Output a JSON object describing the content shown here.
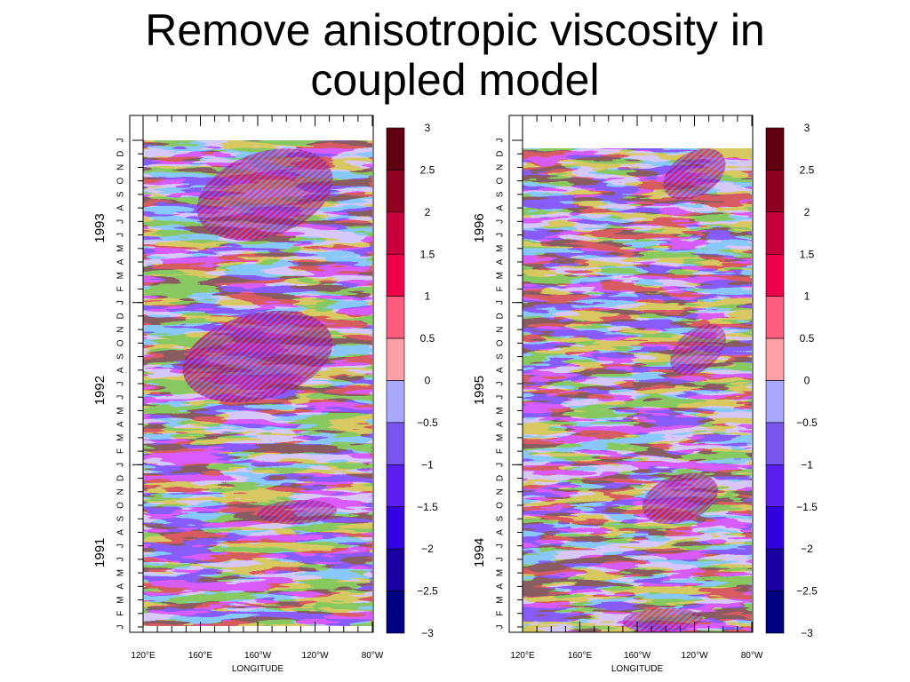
{
  "slide": {
    "title_line1": "Remove anisotropic viscosity in",
    "title_line2": "coupled model"
  },
  "colors": {
    "contour_scale": [
      "#000080",
      "#1a00a0",
      "#3300e0",
      "#5a1ff0",
      "#7a55f0",
      "#a8a8ff",
      "#ffa0a8",
      "#ff5c80",
      "#f0004a",
      "#c8003c",
      "#900020",
      "#600010"
    ],
    "background_positive": "#f7a7b0",
    "background_negative": "#a9a9f7"
  },
  "chart_data": [
    {
      "type": "heatmap",
      "title": "",
      "xlabel": "LONGITUDE",
      "ylabel": "",
      "x_ticks": [
        "120°E",
        "160°E",
        "160°W",
        "120°W",
        "80°W"
      ],
      "x_range_deg_east": [
        120,
        280
      ],
      "y_month_labels": [
        "J",
        "F",
        "M",
        "A",
        "M",
        "J",
        "J",
        "A",
        "S",
        "O",
        "N",
        "D",
        "J",
        "F",
        "M",
        "A",
        "M",
        "J",
        "J",
        "A",
        "S",
        "O",
        "N",
        "D",
        "J",
        "F",
        "M",
        "A",
        "M",
        "J",
        "J",
        "A",
        "S",
        "O",
        "N",
        "D",
        "J"
      ],
      "years": [
        "1991",
        "1992",
        "1993"
      ],
      "value_range": [
        -3,
        3
      ],
      "features": [
        {
          "description_value": 2.0,
          "year": "1993",
          "months": "Jun-Dec",
          "lon_range": [
            160,
            250
          ]
        },
        {
          "description_value": 2.5,
          "year": "1992",
          "months": "Jun-Dec",
          "lon_range": [
            150,
            250
          ]
        },
        {
          "description_value": 1.5,
          "year": "1991",
          "months": "Sep-Oct",
          "lon_range": [
            200,
            255
          ]
        }
      ]
    },
    {
      "type": "heatmap",
      "title": "",
      "xlabel": "LONGITUDE",
      "ylabel": "",
      "x_ticks": [
        "120°E",
        "160°E",
        "160°W",
        "120°W",
        "80°W"
      ],
      "x_range_deg_east": [
        120,
        280
      ],
      "y_month_labels": [
        "J",
        "F",
        "M",
        "A",
        "M",
        "J",
        "J",
        "A",
        "S",
        "O",
        "N",
        "D",
        "J",
        "F",
        "M",
        "A",
        "M",
        "J",
        "J",
        "A",
        "S",
        "O",
        "N",
        "D",
        "J",
        "F",
        "M",
        "A",
        "M",
        "J",
        "J",
        "A",
        "S",
        "O",
        "N",
        "D",
        "J"
      ],
      "years": [
        "1994",
        "1995",
        "1996"
      ],
      "value_range": [
        -3,
        3
      ],
      "features": [
        {
          "description_value": 2.0,
          "year": "1996",
          "months": "Sep-Dec",
          "lon_range": [
            220,
            260
          ]
        },
        {
          "description_value": 1.5,
          "year": "1995",
          "months": "Aug-Nov",
          "lon_range": [
            225,
            260
          ]
        },
        {
          "description_value": 2.0,
          "year": "1994",
          "months": "Sep-Dec",
          "lon_range": [
            205,
            255
          ]
        },
        {
          "description_value": 1.5,
          "year": "1994",
          "months": "Jan-Feb",
          "lon_range": [
            190,
            245
          ]
        }
      ]
    }
  ],
  "colorbar": {
    "labels": [
      "3",
      "2.5",
      "2",
      "1.5",
      "1",
      "0.5",
      "0",
      "−0.5",
      "−1",
      "−1.5",
      "−2",
      "−2.5",
      "−3"
    ]
  }
}
